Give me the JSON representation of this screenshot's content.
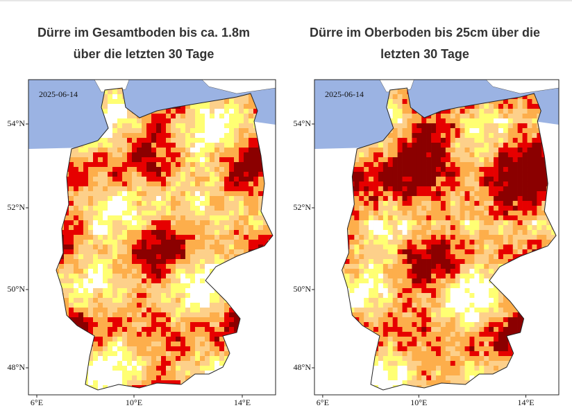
{
  "panels": [
    {
      "title": [
        "Dürre im Gesamtboden bis ca. 1.8m",
        "über die letzten 30 Tage"
      ],
      "date": "2025-06-14",
      "lat_labels": [
        "54°N",
        "52°N",
        "50°N",
        "48°N"
      ],
      "lon_labels": [
        "6°E",
        "10°E",
        "14°E"
      ]
    },
    {
      "title": [
        "Dürre im Oberboden bis 25cm über die",
        "letzten 30 Tage"
      ],
      "date": "2025-06-14",
      "lat_labels": [
        "54°N",
        "52°N",
        "50°N",
        "48°N"
      ],
      "lon_labels": [
        "6°E",
        "10°E",
        "14°E"
      ]
    }
  ]
}
